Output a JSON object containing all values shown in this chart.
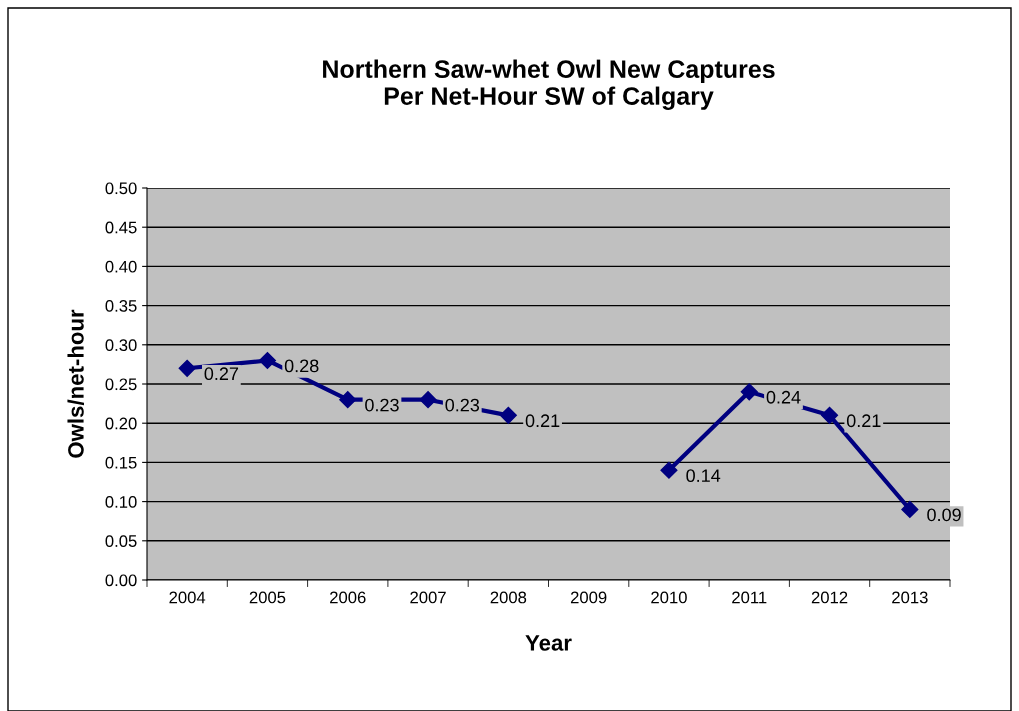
{
  "chart_data": {
    "type": "line",
    "title": "Northern Saw-whet Owl New Captures\nPer Net-Hour SW of Calgary",
    "xlabel": "Year",
    "ylabel": "Owls/net-hour",
    "categories": [
      "2004",
      "2005",
      "2006",
      "2007",
      "2008",
      "2009",
      "2010",
      "2011",
      "2012",
      "2013"
    ],
    "series": [
      {
        "color": "#000080",
        "values": [
          0.27,
          0.28,
          0.23,
          0.23,
          0.21,
          null,
          0.14,
          0.24,
          0.21,
          0.09
        ]
      }
    ],
    "ylim": [
      0,
      0.5
    ],
    "yticks": [
      {
        "value": 0,
        "label": "0.00"
      },
      {
        "value": 0.05,
        "label": "0.05"
      },
      {
        "value": 0.1,
        "label": "0.10"
      },
      {
        "value": 0.15,
        "label": "0.15"
      },
      {
        "value": 0.2,
        "label": "0.20"
      },
      {
        "value": 0.25,
        "label": "0.25"
      },
      {
        "value": 0.3,
        "label": "0.30"
      },
      {
        "value": 0.35,
        "label": "0.35"
      },
      {
        "value": 0.4,
        "label": "0.40"
      },
      {
        "value": 0.45,
        "label": "0.45"
      },
      {
        "value": 0.5,
        "label": "0.50"
      }
    ],
    "grid": "y",
    "marker": "diamond",
    "line_style": "solid",
    "data_labels": true
  }
}
